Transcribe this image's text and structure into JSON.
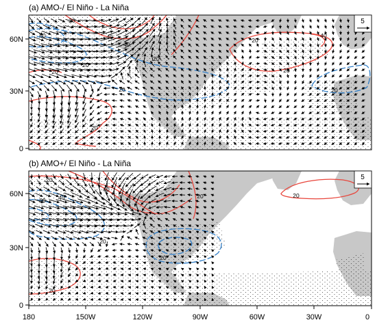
{
  "figure": {
    "panels": [
      {
        "id": "a",
        "title": "(a) AMO-/ El Niño - La Niña"
      },
      {
        "id": "b",
        "title": "(b) AMO+/ El Niño - La Niña"
      }
    ],
    "y_ticks": [
      "60N",
      "30N",
      "0"
    ],
    "x_ticks": [
      "180",
      "150W",
      "120W",
      "90W",
      "60W",
      "30W",
      "0"
    ],
    "reference_vector": "5",
    "colors": {
      "positive_contour": "#e8443a",
      "negative_contour": "#2e7dc7",
      "land": "#c8c8c8",
      "vector": "#000000",
      "stipple": "#333333"
    },
    "contour_labels": {
      "a": [
        "20",
        "40",
        "20",
        "40",
        "20",
        "20",
        "20",
        "20",
        "40",
        "20",
        "20",
        "20",
        "60"
      ],
      "b": [
        "20",
        "40",
        "20",
        "20",
        "20",
        "20",
        "20",
        "60",
        "40"
      ]
    }
  }
}
